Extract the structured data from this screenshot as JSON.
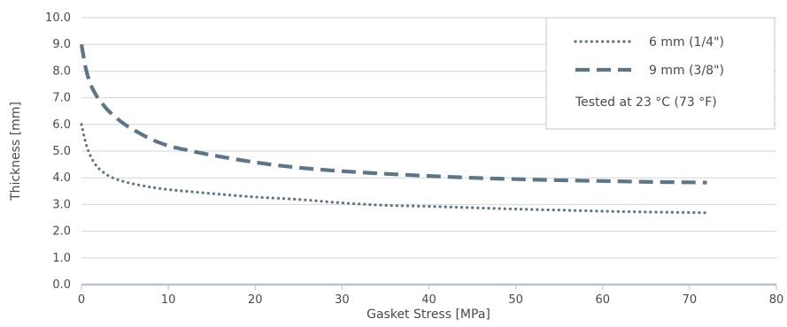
{
  "chart_data": {
    "type": "line",
    "title": "",
    "xlabel": "Gasket Stress [MPa]",
    "ylabel": "Thickness [mm]",
    "xlim": [
      0,
      80
    ],
    "ylim": [
      0,
      10
    ],
    "x_ticks": [
      0,
      10,
      20,
      30,
      40,
      50,
      60,
      70,
      80
    ],
    "x_tick_labels": [
      "0",
      "10",
      "20",
      "30",
      "40",
      "50",
      "60",
      "70",
      "80"
    ],
    "y_ticks": [
      0,
      1,
      2,
      3,
      4,
      5,
      6,
      7,
      8,
      9,
      10
    ],
    "y_tick_labels": [
      "0.0",
      "1.0",
      "2.0",
      "3.0",
      "4.0",
      "5.0",
      "6.0",
      "7.0",
      "8.0",
      "9.0",
      "10.0"
    ],
    "grid": "horizontal",
    "legend_position": "top-right",
    "legend_note": "Tested at 23 °C (73 °F)",
    "series": [
      {
        "name": "6 mm (1/4\")",
        "style": "dotted",
        "color": "#5b7688",
        "x": [
          0,
          0.5,
          1,
          1.5,
          2,
          3,
          4,
          5,
          6,
          8,
          10,
          12,
          15,
          20,
          25,
          30,
          35,
          40,
          45,
          50,
          55,
          60,
          65,
          70,
          72
        ],
        "y": [
          6.0,
          5.3,
          4.85,
          4.55,
          4.35,
          4.1,
          3.95,
          3.85,
          3.77,
          3.65,
          3.56,
          3.5,
          3.41,
          3.28,
          3.19,
          3.06,
          2.97,
          2.93,
          2.88,
          2.83,
          2.79,
          2.75,
          2.72,
          2.7,
          2.69
        ]
      },
      {
        "name": "9 mm (3/8\")",
        "style": "dashed",
        "color": "#5b7688",
        "x": [
          0,
          0.5,
          1,
          1.5,
          2,
          3,
          4,
          5,
          6,
          8,
          10,
          12,
          15,
          20,
          25,
          30,
          35,
          40,
          45,
          50,
          55,
          60,
          65,
          70,
          72
        ],
        "y": [
          9.0,
          8.1,
          7.55,
          7.2,
          6.95,
          6.55,
          6.25,
          6.0,
          5.8,
          5.45,
          5.2,
          5.05,
          4.85,
          4.58,
          4.38,
          4.25,
          4.15,
          4.07,
          4.0,
          3.95,
          3.91,
          3.88,
          3.85,
          3.83,
          3.82
        ]
      }
    ]
  }
}
